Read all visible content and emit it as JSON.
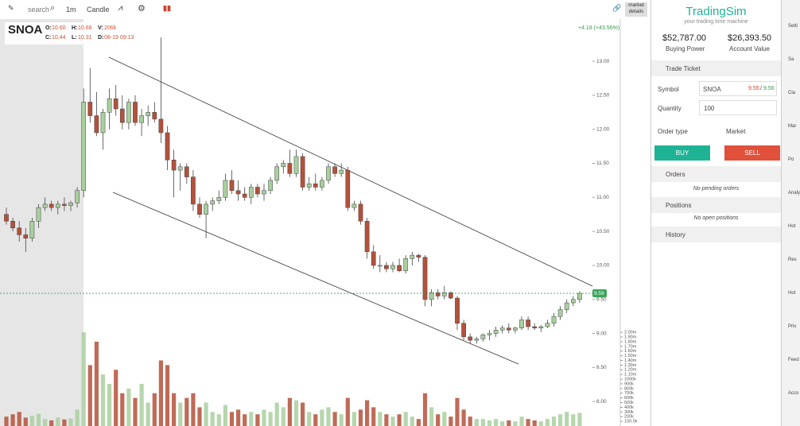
{
  "toolbar": {
    "search": "search",
    "interval": "1m",
    "style": "Candle",
    "market_details": "market details"
  },
  "chart_data": {
    "type": "candlestick",
    "symbol": "SNOA",
    "ohlc_header": [
      [
        "O:",
        "10.60"
      ],
      [
        "H:",
        "10.66"
      ],
      [
        "V:",
        "206k"
      ],
      [
        "C:",
        "10.44"
      ],
      [
        "L:",
        "10.31"
      ],
      [
        "D:",
        "08-19 09:13"
      ]
    ],
    "change": "+4.18 (+43.56%)",
    "up_color": "#a9cf9f",
    "down_color": "#b4513a",
    "last_price": 9.59,
    "ylim": [
      7.64,
      13.62
    ],
    "yticks": [
      {
        "value": 8,
        "label": "8.00"
      },
      {
        "value": 8.5,
        "label": "8.50"
      },
      {
        "value": 9,
        "label": "9.00"
      },
      {
        "value": 9.5,
        "label": "9.50"
      },
      {
        "value": 10,
        "label": "10.00"
      },
      {
        "value": 10.5,
        "label": "10.50"
      },
      {
        "value": 11,
        "label": "11.00"
      },
      {
        "value": 11.5,
        "label": "11.50"
      },
      {
        "value": 12,
        "label": "12.00"
      },
      {
        "value": 12.5,
        "label": "12.50"
      },
      {
        "value": 13,
        "label": "13.00"
      }
    ],
    "volume_lim": [
      0,
      2070000
    ],
    "volume_ticks": [
      {
        "value": 2000000,
        "label": "2.00m"
      },
      {
        "value": 1900000,
        "label": "1.90m"
      },
      {
        "value": 1800000,
        "label": "1.80m"
      },
      {
        "value": 1700000,
        "label": "1.70m"
      },
      {
        "value": 1600000,
        "label": "1.60m"
      },
      {
        "value": 1500000,
        "label": "1.50m"
      },
      {
        "value": 1400000,
        "label": "1.40m"
      },
      {
        "value": 1300000,
        "label": "1.30m"
      },
      {
        "value": 1200000,
        "label": "1.20m"
      },
      {
        "value": 1100000,
        "label": "1.10m"
      },
      {
        "value": 1000000,
        "label": "1000k"
      },
      {
        "value": 900000,
        "label": "900k"
      },
      {
        "value": 800000,
        "label": "800k"
      },
      {
        "value": 700000,
        "label": "700k"
      },
      {
        "value": 600000,
        "label": "600k"
      },
      {
        "value": 500000,
        "label": "500k"
      },
      {
        "value": 400000,
        "label": "400k"
      },
      {
        "value": 300000,
        "label": "300k"
      },
      {
        "value": 200000,
        "label": "200k"
      },
      {
        "value": 100000,
        "label": "100.0k"
      }
    ],
    "candles": [
      [
        10.75,
        10.85,
        10.6,
        10.65
      ],
      [
        10.65,
        10.7,
        10.5,
        10.55
      ],
      [
        10.55,
        10.65,
        10.35,
        10.45
      ],
      [
        10.45,
        10.55,
        10.2,
        10.4
      ],
      [
        10.4,
        10.7,
        10.35,
        10.65
      ],
      [
        10.65,
        10.9,
        10.55,
        10.85
      ],
      [
        10.85,
        11.0,
        10.8,
        10.9
      ],
      [
        10.9,
        10.95,
        10.8,
        10.85
      ],
      [
        10.85,
        10.95,
        10.75,
        10.9
      ],
      [
        10.9,
        11.0,
        10.8,
        10.88
      ],
      [
        10.88,
        10.95,
        10.8,
        10.92
      ],
      [
        10.92,
        11.15,
        10.85,
        11.1
      ],
      [
        11.1,
        12.6,
        11.0,
        12.4
      ],
      [
        12.4,
        12.9,
        12.1,
        12.2
      ],
      [
        12.2,
        12.55,
        11.9,
        11.95
      ],
      [
        11.95,
        12.3,
        11.7,
        12.25
      ],
      [
        12.25,
        12.6,
        12.0,
        12.45
      ],
      [
        12.45,
        12.65,
        12.2,
        12.3
      ],
      [
        12.3,
        12.5,
        12.0,
        12.1
      ],
      [
        12.1,
        12.45,
        12.0,
        12.4
      ],
      [
        12.4,
        12.5,
        12.05,
        12.1
      ],
      [
        12.1,
        12.3,
        11.9,
        12.2
      ],
      [
        12.2,
        12.35,
        12.05,
        12.25
      ],
      [
        12.25,
        12.4,
        12.1,
        12.15
      ],
      [
        12.15,
        13.35,
        11.8,
        11.95
      ],
      [
        11.95,
        12.05,
        11.4,
        11.55
      ],
      [
        11.55,
        11.7,
        11.0,
        11.4
      ],
      [
        11.4,
        11.5,
        11.1,
        11.45
      ],
      [
        11.45,
        11.5,
        11.2,
        11.3
      ],
      [
        11.3,
        11.4,
        10.8,
        10.9
      ],
      [
        10.9,
        11.0,
        10.7,
        10.75
      ],
      [
        10.75,
        10.95,
        10.4,
        10.9
      ],
      [
        10.9,
        11.0,
        10.8,
        10.95
      ],
      [
        10.95,
        11.1,
        10.9,
        11.0
      ],
      [
        11.0,
        11.35,
        10.95,
        11.25
      ],
      [
        11.25,
        11.4,
        11.05,
        11.1
      ],
      [
        11.1,
        11.25,
        10.95,
        11.05
      ],
      [
        11.05,
        11.15,
        10.95,
        11.0
      ],
      [
        11.0,
        11.2,
        10.9,
        11.15
      ],
      [
        11.15,
        11.2,
        11.0,
        11.05
      ],
      [
        11.05,
        11.2,
        10.95,
        11.1
      ],
      [
        11.1,
        11.3,
        11.05,
        11.25
      ],
      [
        11.25,
        11.5,
        11.2,
        11.45
      ],
      [
        11.45,
        11.55,
        11.35,
        11.5
      ],
      [
        11.5,
        11.7,
        11.3,
        11.35
      ],
      [
        11.35,
        11.7,
        11.3,
        11.6
      ],
      [
        11.6,
        11.65,
        11.1,
        11.15
      ],
      [
        11.15,
        11.3,
        11.1,
        11.2
      ],
      [
        11.2,
        11.35,
        11.1,
        11.15
      ],
      [
        11.15,
        11.3,
        11.1,
        11.25
      ],
      [
        11.25,
        11.5,
        11.2,
        11.45
      ],
      [
        11.45,
        11.5,
        11.3,
        11.35
      ],
      [
        11.35,
        11.5,
        11.3,
        11.4
      ],
      [
        11.4,
        11.45,
        10.8,
        10.85
      ],
      [
        10.85,
        10.95,
        10.8,
        10.9
      ],
      [
        10.9,
        10.95,
        10.6,
        10.65
      ],
      [
        10.65,
        10.7,
        10.1,
        10.2
      ],
      [
        10.2,
        10.3,
        9.95,
        10.0
      ],
      [
        10.0,
        10.15,
        9.9,
        10.0
      ],
      [
        10.0,
        10.05,
        9.9,
        9.95
      ],
      [
        9.95,
        10.05,
        9.9,
        10.0
      ],
      [
        10.0,
        10.1,
        9.9,
        9.92
      ],
      [
        9.92,
        10.15,
        9.88,
        10.1
      ],
      [
        10.1,
        10.2,
        10.0,
        10.15
      ],
      [
        10.15,
        10.17,
        10.05,
        10.12
      ],
      [
        10.12,
        10.15,
        9.4,
        9.5
      ],
      [
        9.5,
        9.65,
        9.4,
        9.6
      ],
      [
        9.6,
        9.65,
        9.5,
        9.55
      ],
      [
        9.55,
        9.7,
        9.5,
        9.6
      ],
      [
        9.6,
        9.62,
        9.5,
        9.52
      ],
      [
        9.52,
        9.55,
        9.05,
        9.15
      ],
      [
        9.15,
        9.2,
        8.9,
        8.95
      ],
      [
        8.95,
        9.0,
        8.85,
        8.9
      ],
      [
        8.9,
        8.95,
        8.85,
        8.92
      ],
      [
        8.92,
        9.0,
        8.88,
        8.98
      ],
      [
        8.98,
        9.05,
        8.9,
        9.0
      ],
      [
        9.0,
        9.1,
        8.95,
        9.05
      ],
      [
        9.05,
        9.12,
        9.0,
        9.08
      ],
      [
        9.08,
        9.15,
        9.0,
        9.05
      ],
      [
        9.05,
        9.1,
        9.0,
        9.08
      ],
      [
        9.08,
        9.25,
        9.05,
        9.2
      ],
      [
        9.2,
        9.25,
        9.05,
        9.1
      ],
      [
        9.1,
        9.15,
        9.05,
        9.08
      ],
      [
        9.08,
        9.12,
        9.02,
        9.1
      ],
      [
        9.1,
        9.2,
        9.08,
        9.15
      ],
      [
        9.15,
        9.3,
        9.1,
        9.25
      ],
      [
        9.25,
        9.4,
        9.2,
        9.35
      ],
      [
        9.35,
        9.5,
        9.3,
        9.45
      ],
      [
        9.45,
        9.55,
        9.4,
        9.5
      ],
      [
        9.5,
        9.62,
        9.45,
        9.59
      ]
    ],
    "volume": [
      200000,
      250000,
      300000,
      180000,
      220000,
      260000,
      150000,
      120000,
      180000,
      140000,
      160000,
      350000,
      2000000,
      1300000,
      1800000,
      1100000,
      900000,
      1200000,
      700000,
      800000,
      600000,
      900000,
      500000,
      700000,
      1400000,
      1300000,
      700000,
      500000,
      600000,
      700000,
      400000,
      500000,
      300000,
      250000,
      450000,
      300000,
      350000,
      250000,
      300000,
      250000,
      350000,
      300000,
      500000,
      400000,
      600000,
      550000,
      500000,
      300000,
      250000,
      350000,
      400000,
      300000,
      250000,
      600000,
      300000,
      350000,
      550000,
      400000,
      300000,
      250000,
      200000,
      250000,
      300000,
      200000,
      150000,
      700000,
      400000,
      250000,
      300000,
      200000,
      600000,
      350000,
      200000,
      150000,
      150000,
      120000,
      150000,
      100000,
      120000,
      100000,
      200000,
      150000,
      120000,
      100000,
      150000,
      200000,
      250000,
      300000,
      250000,
      280000
    ]
  },
  "panel": {
    "brand": "TradingSim",
    "tagline": "your trading time machine",
    "buying_power": "$52,787.00",
    "buying_power_label": "Buying Power",
    "account_value": "$26,393.50",
    "account_value_label": "Account Value",
    "trade_ticket": "Trade Ticket",
    "symbol_label": "Symbol",
    "symbol": "SNOA",
    "bid": "9.55",
    "sep": "/",
    "ask": "9.56",
    "quantity_label": "Quantity",
    "quantity": "100",
    "order_type_label": "Order type",
    "order_type": "Market",
    "buy": "BUY",
    "sell": "SELL",
    "orders": "Orders",
    "no_orders": "No pending orders",
    "positions": "Positions",
    "no_positions": "No open positions",
    "history": "History"
  },
  "nav": [
    "Setti",
    "Sa",
    "Cla",
    "Mar",
    "Po",
    "Analy",
    "Hot",
    "Res",
    "Hot",
    "Priv",
    "Feed",
    "Acco"
  ]
}
